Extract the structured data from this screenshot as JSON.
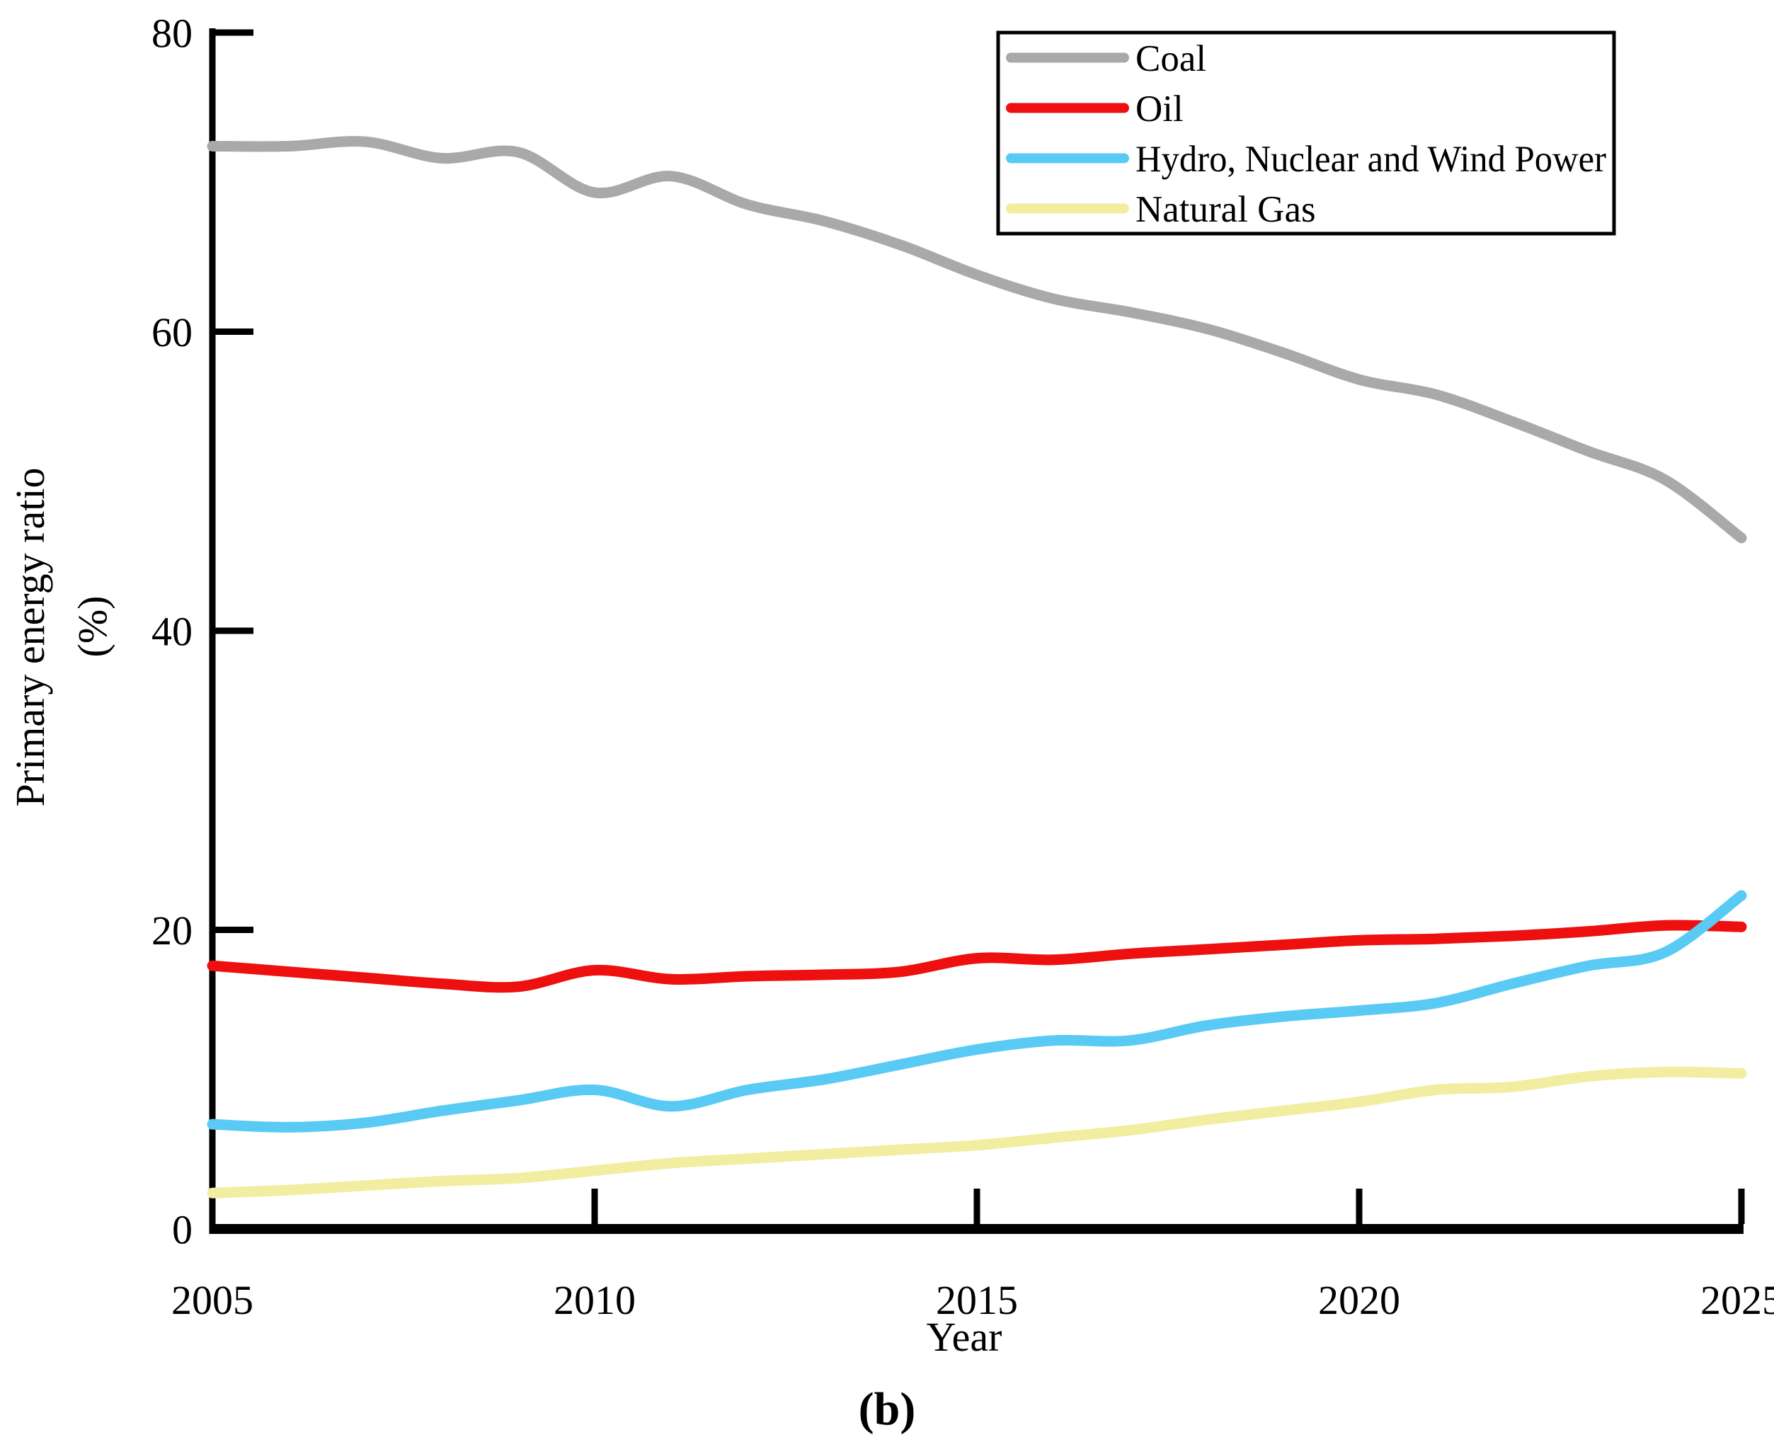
{
  "figure": {
    "caption": "(b)",
    "background": "#ffffff"
  },
  "axes": {
    "x": {
      "label": "Year",
      "tick_labels": [
        "2005",
        "2010",
        "2015",
        "2020",
        "2025"
      ],
      "ticks": [
        2005,
        2010,
        2015,
        2020,
        2025
      ],
      "range": [
        2005,
        2025
      ]
    },
    "y": {
      "label_line1": "Primary energy ratio",
      "label_line2": "(%)",
      "tick_labels": [
        "0",
        "20",
        "40",
        "60",
        "80"
      ],
      "ticks": [
        0,
        20,
        40,
        60,
        80
      ],
      "range": [
        0,
        80
      ]
    }
  },
  "colors": {
    "coal": "#a9a9a9",
    "oil": "#ee0f0f",
    "hydro_nuclear_wind": "#58caf4",
    "natural_gas": "#f2eda0",
    "axis": "#000000"
  },
  "chart_data": {
    "type": "line",
    "title": "",
    "xlabel": "Year",
    "ylabel": "Primary energy ratio (%)",
    "x": [
      2005,
      2006,
      2007,
      2008,
      2009,
      2010,
      2011,
      2012,
      2013,
      2014,
      2015,
      2016,
      2017,
      2018,
      2019,
      2020,
      2021,
      2022,
      2023,
      2024,
      2025
    ],
    "xlim": [
      2005,
      2025
    ],
    "ylim": [
      0,
      80
    ],
    "grid": false,
    "legend_position": "top-right",
    "series": [
      {
        "name": "Coal",
        "color": "#a9a9a9",
        "values": [
          72.4,
          72.4,
          72.7,
          71.6,
          72.0,
          69.3,
          70.4,
          68.5,
          67.4,
          65.8,
          63.8,
          62.2,
          61.3,
          60.2,
          58.6,
          56.8,
          55.8,
          54.0,
          52.0,
          50.1,
          46.2
        ]
      },
      {
        "name": "Oil",
        "color": "#ee0f0f",
        "values": [
          17.6,
          17.2,
          16.8,
          16.4,
          16.2,
          17.3,
          16.7,
          16.9,
          17.0,
          17.2,
          18.1,
          18.0,
          18.4,
          18.7,
          19.0,
          19.3,
          19.4,
          19.6,
          19.9,
          20.3,
          20.2
        ]
      },
      {
        "name": "Hydro, Nuclear and Wind Power",
        "color": "#58caf4",
        "values": [
          7.0,
          6.8,
          7.1,
          7.9,
          8.6,
          9.3,
          8.2,
          9.3,
          10.0,
          11.0,
          12.0,
          12.6,
          12.6,
          13.6,
          14.2,
          14.6,
          15.1,
          16.4,
          17.6,
          18.5,
          22.3
        ]
      },
      {
        "name": "Natural Gas",
        "color": "#f2eda0",
        "values": [
          2.4,
          2.6,
          2.9,
          3.2,
          3.4,
          3.9,
          4.4,
          4.7,
          5.0,
          5.3,
          5.6,
          6.1,
          6.6,
          7.3,
          7.9,
          8.5,
          9.3,
          9.5,
          10.2,
          10.5,
          10.4
        ]
      }
    ]
  }
}
